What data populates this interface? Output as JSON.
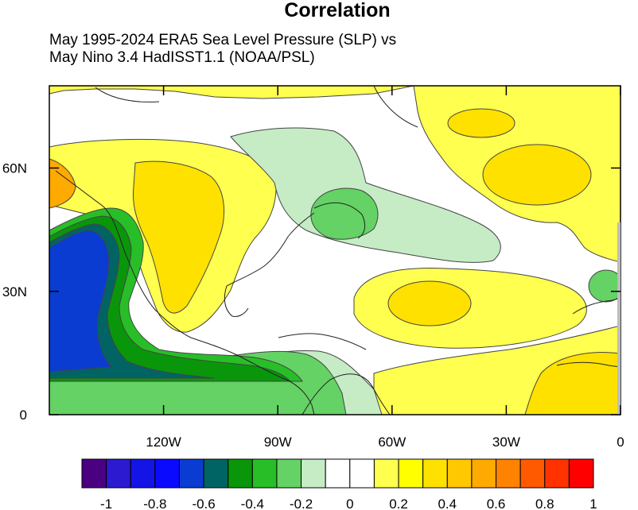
{
  "title": "Correlation",
  "subtitle_line1": "May 1995-2024 ERA5 Sea Level Pressure (SLP) vs",
  "subtitle_line2": "May Nino 3.4 HadISST1.1 (NOAA/PSL)",
  "map": {
    "lon_range": [
      -150,
      0
    ],
    "lat_range": [
      0,
      80
    ],
    "x_ticks": [
      {
        "lon": -120,
        "label": "120W"
      },
      {
        "lon": -90,
        "label": "90W"
      },
      {
        "lon": -60,
        "label": "60W"
      },
      {
        "lon": -30,
        "label": "30W"
      },
      {
        "lon": 0,
        "label": "0"
      }
    ],
    "y_ticks": [
      {
        "lat": 0,
        "label": "0"
      },
      {
        "lat": 30,
        "label": "30N"
      },
      {
        "lat": 60,
        "label": "60N"
      }
    ]
  },
  "colorbar": {
    "colors": [
      "#4b0082",
      "#2b1ad0",
      "#1414e6",
      "#0a0aff",
      "#0a3cd2",
      "#006464",
      "#0a960a",
      "#28be28",
      "#64d264",
      "#c6ecc6",
      "#ffffff",
      "#ffffff",
      "#ffff50",
      "#ffff00",
      "#ffe100",
      "#ffc800",
      "#ffaa00",
      "#ff8200",
      "#ff5a00",
      "#ff3200",
      "#ff0000"
    ],
    "tick_labels": [
      "-1",
      "-0.8",
      "-0.6",
      "-0.4",
      "-0.2",
      "0",
      "0.2",
      "0.4",
      "0.6",
      "0.8",
      "1"
    ]
  },
  "fill_colors": {
    "deep_blue": "#0a3cd2",
    "teal": "#006464",
    "green": "#0a960a",
    "mid_green": "#28be28",
    "light_green": "#64d264",
    "pale_green": "#c6ecc6",
    "yellow": "#ffff50",
    "gold": "#ffe100",
    "orange": "#ffaa00"
  }
}
